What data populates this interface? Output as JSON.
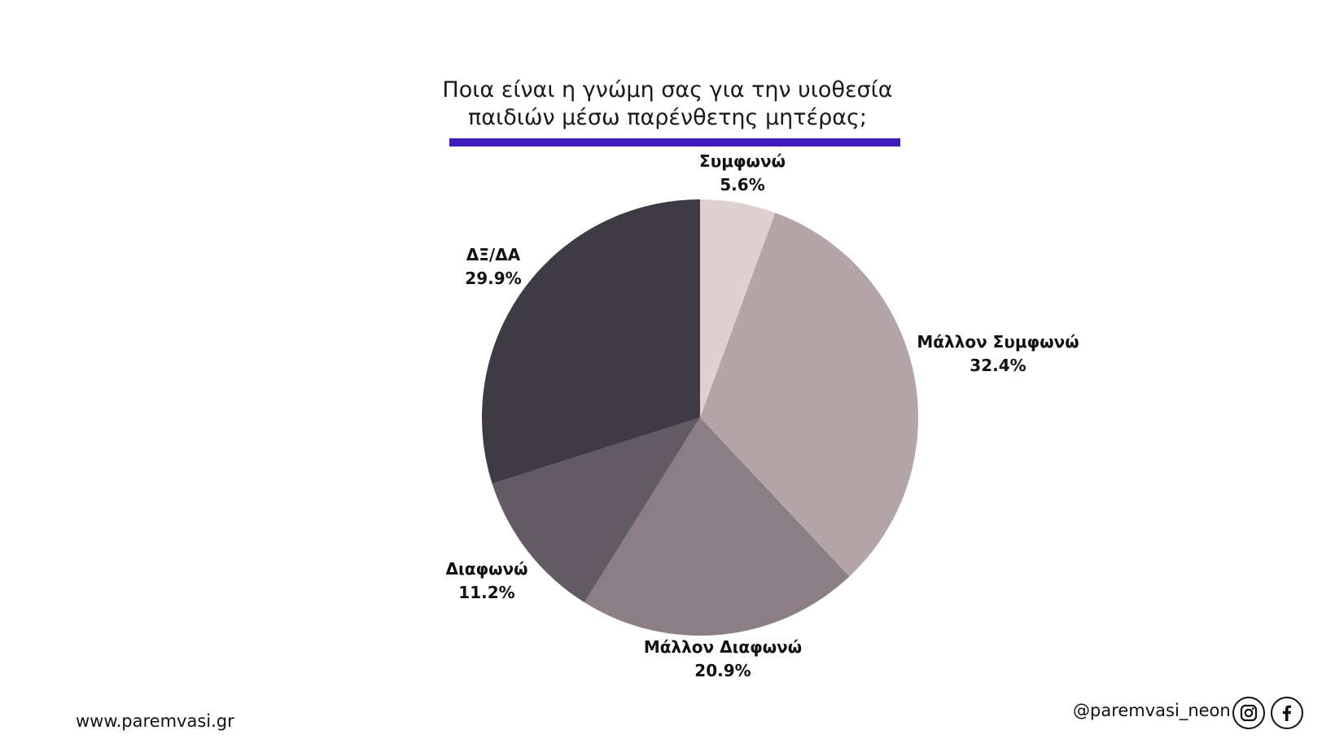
{
  "chart_data": {
    "type": "pie",
    "title": [
      "Ποια είναι η γνώμη σας για την υιοθεσία",
      "παιδιών μέσω παρένθετης μητέρας;"
    ],
    "slices": [
      {
        "label": "Συμφωνώ",
        "value": 5.6,
        "value_label": "5.6%",
        "color": "#dfd1d1"
      },
      {
        "label": "Μάλλον Συμφωνώ",
        "value": 32.4,
        "value_label": "32.4%",
        "color": "#b4a6a8"
      },
      {
        "label": "Μάλλον Διαφωνώ",
        "value": 20.9,
        "value_label": "20.9%",
        "color": "#8b7f85"
      },
      {
        "label": "Διαφωνώ",
        "value": 11.2,
        "value_label": "11.2%",
        "color": "#635b63"
      },
      {
        "label": "ΔΞ/ΔΑ",
        "value": 29.9,
        "value_label": "29.9%",
        "color": "#3e3b44"
      }
    ],
    "start": "top, clockwise",
    "accent_color": "#3d1bbf"
  },
  "footer": {
    "website": "www.paremvasi.gr",
    "handle": "@paremvasi_neon",
    "icons": [
      "instagram-icon",
      "facebook-icon"
    ]
  }
}
